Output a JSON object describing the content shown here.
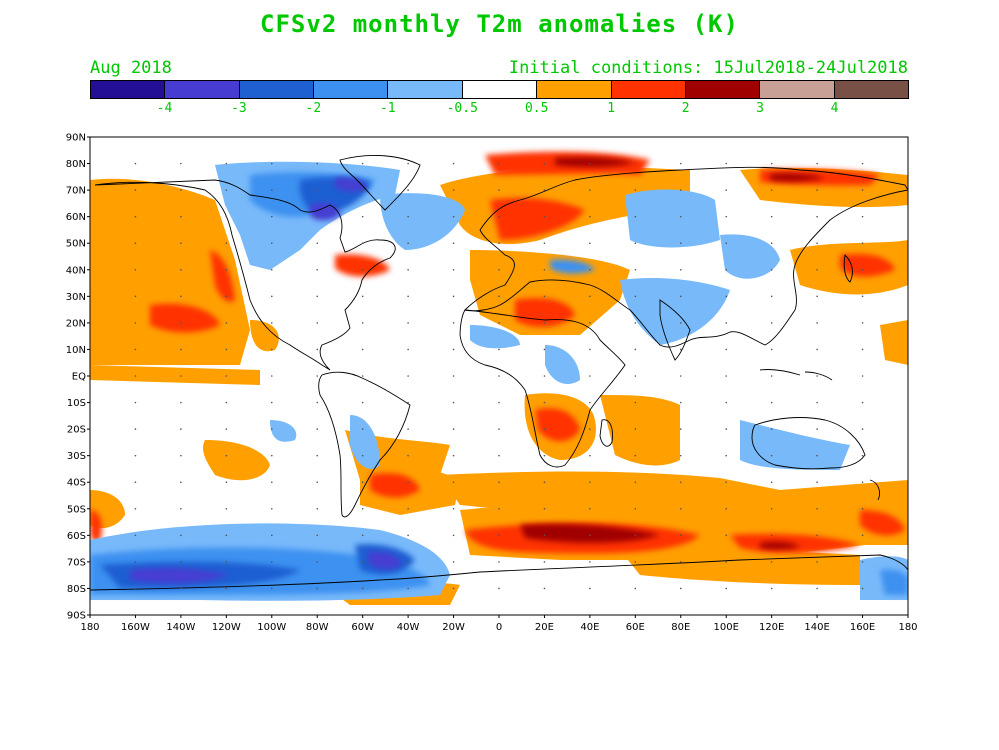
{
  "title": "CFSv2 monthly T2m anomalies (K)",
  "month_label": "Aug 2018",
  "ic_label": "Initial conditions: 15Jul2018-24Jul2018",
  "legend": {
    "colors": [
      "#230f96",
      "#463cd2",
      "#1e5fd2",
      "#3c91f0",
      "#78b9fa",
      "#ffffff",
      "#ffa000",
      "#ff3200",
      "#a00000",
      "#c8a096",
      "#785046"
    ],
    "ticks": [
      "-4",
      "-3",
      "-2",
      "-1",
      "-0.5",
      "0.5",
      "1",
      "2",
      "3",
      "4"
    ]
  },
  "lat_labels": [
    "90N",
    "80N",
    "70N",
    "60N",
    "50N",
    "40N",
    "30N",
    "20N",
    "10N",
    "EQ",
    "10S",
    "20S",
    "30S",
    "40S",
    "50S",
    "60S",
    "70S",
    "80S",
    "90S"
  ],
  "lon_labels": [
    "180",
    "160W",
    "140W",
    "120W",
    "100W",
    "80W",
    "60W",
    "40W",
    "20W",
    "0",
    "20E",
    "40E",
    "60E",
    "80E",
    "100E",
    "120E",
    "140E",
    "160E",
    "180"
  ]
}
